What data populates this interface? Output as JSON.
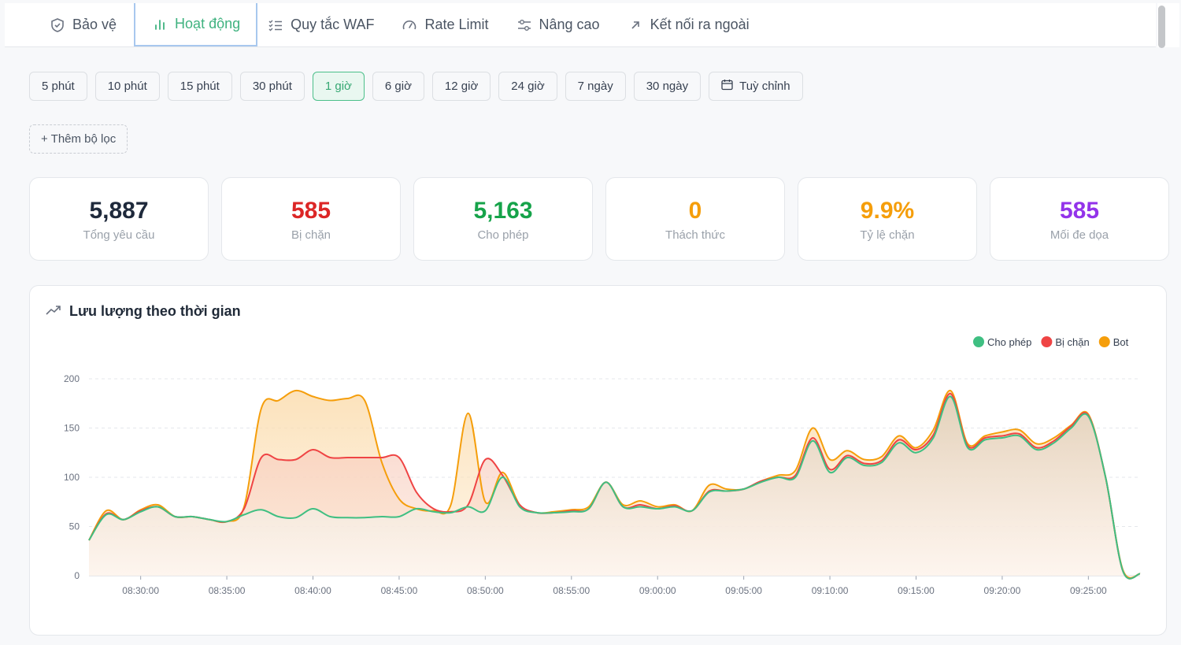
{
  "tabs": [
    {
      "label": "Bảo vệ",
      "icon": "shield-icon",
      "active": false
    },
    {
      "label": "Hoạt động",
      "icon": "bar-chart-icon",
      "active": true
    },
    {
      "label": "Quy tắc WAF",
      "icon": "checklist-icon",
      "active": false
    },
    {
      "label": "Rate Limit",
      "icon": "gauge-icon",
      "active": false
    },
    {
      "label": "Nâng cao",
      "icon": "sliders-icon",
      "active": false
    },
    {
      "label": "Kết nối ra ngoài",
      "icon": "arrow-up-right-icon",
      "active": false
    }
  ],
  "ranges": [
    {
      "label": "5 phút"
    },
    {
      "label": "10 phút"
    },
    {
      "label": "15 phút"
    },
    {
      "label": "30 phút"
    },
    {
      "label": "1 giờ",
      "active": true
    },
    {
      "label": "6 giờ"
    },
    {
      "label": "12 giờ"
    },
    {
      "label": "24 giờ"
    },
    {
      "label": "7 ngày"
    },
    {
      "label": "30 ngày"
    }
  ],
  "custom_range_label": "Tuỳ chỉnh",
  "add_filter_label": "+ Thêm bộ lọc",
  "stats": [
    {
      "value": "5,887",
      "label": "Tổng yêu cầu",
      "color": "#1e293b"
    },
    {
      "value": "585",
      "label": "Bị chặn",
      "color": "#dc2626"
    },
    {
      "value": "5,163",
      "label": "Cho phép",
      "color": "#16a34a"
    },
    {
      "value": "0",
      "label": "Thách thức",
      "color": "#f59e0b"
    },
    {
      "value": "9.9%",
      "label": "Tỷ lệ chặn",
      "color": "#f59e0b"
    },
    {
      "value": "585",
      "label": "Mối đe dọa",
      "color": "#9333ea"
    }
  ],
  "chart_panel": {
    "title": "Lưu lượng theo thời gian",
    "icon": "trending-up-icon"
  },
  "chart_data": {
    "type": "area",
    "title": "Lưu lượng theo thời gian",
    "ylim": [
      0,
      200
    ],
    "yticks": [
      0,
      50,
      100,
      150,
      200
    ],
    "xlim": [
      0,
      61
    ],
    "xticks": [
      {
        "t": 3,
        "label": "08:30:00"
      },
      {
        "t": 8,
        "label": "08:35:00"
      },
      {
        "t": 13,
        "label": "08:40:00"
      },
      {
        "t": 18,
        "label": "08:45:00"
      },
      {
        "t": 23,
        "label": "08:50:00"
      },
      {
        "t": 28,
        "label": "08:55:00"
      },
      {
        "t": 33,
        "label": "09:00:00"
      },
      {
        "t": 38,
        "label": "09:05:00"
      },
      {
        "t": 43,
        "label": "09:10:00"
      },
      {
        "t": 48,
        "label": "09:15:00"
      },
      {
        "t": 53,
        "label": "09:20:00"
      },
      {
        "t": 58,
        "label": "09:25:00"
      }
    ],
    "legend_position": "top-right",
    "grid": true,
    "series": [
      {
        "name": "Cho phép",
        "color": "#3fbf82",
        "values": [
          36,
          62,
          57,
          65,
          70,
          60,
          60,
          57,
          55,
          62,
          67,
          60,
          59,
          68,
          60,
          59,
          59,
          60,
          60,
          68,
          65,
          64,
          70,
          66,
          100,
          70,
          64,
          64,
          65,
          68,
          95,
          70,
          70,
          68,
          70,
          66,
          85,
          86,
          88,
          95,
          100,
          100,
          137,
          105,
          120,
          112,
          115,
          135,
          125,
          140,
          182,
          130,
          138,
          140,
          142,
          128,
          135,
          150,
          162,
          100,
          5,
          2
        ]
      },
      {
        "name": "Bị chặn",
        "color": "#ef4444",
        "values": [
          36,
          63,
          57,
          66,
          70,
          60,
          60,
          57,
          55,
          68,
          120,
          118,
          118,
          128,
          120,
          120,
          120,
          120,
          120,
          85,
          68,
          65,
          72,
          118,
          102,
          72,
          64,
          64,
          66,
          68,
          95,
          70,
          72,
          68,
          71,
          66,
          86,
          86,
          88,
          96,
          100,
          102,
          140,
          108,
          122,
          114,
          117,
          138,
          128,
          143,
          185,
          132,
          140,
          142,
          144,
          130,
          137,
          152,
          163,
          100,
          5,
          2
        ]
      },
      {
        "name": "Bot",
        "color": "#f59e0b",
        "values": [
          36,
          66,
          57,
          67,
          72,
          60,
          60,
          57,
          55,
          70,
          170,
          178,
          188,
          182,
          178,
          180,
          178,
          115,
          78,
          68,
          66,
          72,
          165,
          75,
          105,
          72,
          64,
          65,
          67,
          70,
          95,
          72,
          76,
          70,
          72,
          66,
          92,
          88,
          88,
          96,
          102,
          107,
          150,
          118,
          127,
          118,
          121,
          142,
          130,
          148,
          188,
          134,
          142,
          146,
          148,
          134,
          140,
          153,
          164,
          100,
          6,
          2
        ]
      }
    ]
  }
}
